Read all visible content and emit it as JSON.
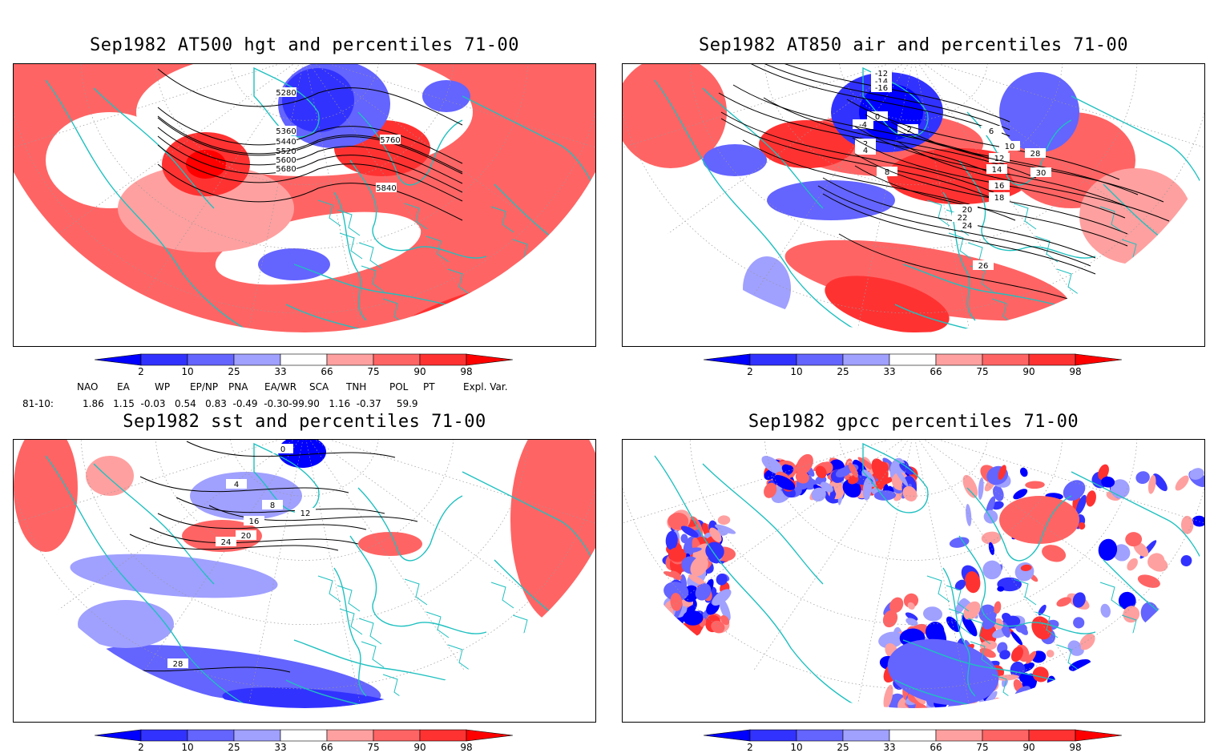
{
  "panels": [
    {
      "id": "hgt",
      "title": "Sep1982 AT500 hgt and percentiles 71-00",
      "contour_labels": [
        "5280",
        "5360",
        "5440",
        "5520",
        "5600",
        "5680",
        "5760",
        "5840"
      ]
    },
    {
      "id": "air",
      "title": "Sep1982 AT850 air and percentiles 71-00",
      "contour_labels": [
        "-12",
        "-14",
        "-16",
        "-2",
        "-4",
        "0",
        "2",
        "4",
        "6",
        "8",
        "10",
        "12",
        "14",
        "16",
        "18",
        "20",
        "22",
        "24",
        "26",
        "28",
        "30"
      ]
    },
    {
      "id": "sst",
      "title": "Sep1982 sst and percentiles 71-00",
      "contour_labels": [
        "0",
        "4",
        "8",
        "12",
        "16",
        "20",
        "24",
        "28"
      ]
    },
    {
      "id": "gpcc",
      "title": "Sep1982 gpcc percentiles 71-00",
      "contour_labels": []
    }
  ],
  "colorbar": {
    "labels": [
      "2",
      "10",
      "25",
      "33",
      "66",
      "75",
      "90",
      "98"
    ],
    "colors": [
      "#0000ff",
      "#3232ff",
      "#6464ff",
      "#a0a0ff",
      "#ffffff",
      "#ffa0a0",
      "#ff6464",
      "#ff3232",
      "#ff0000"
    ]
  },
  "indices": {
    "headers": [
      "NAO",
      "EA",
      "WP",
      "EP/NP",
      "PNA",
      "EA/WR",
      "SCA",
      "TNH",
      "POL",
      "PT",
      "Expl. Var."
    ],
    "row_label": "81-10:",
    "values": "1.86   1.15  -0.03   0.54   0.83  -0.49  -0.30-99.90   1.16  -0.37     59.9"
  },
  "colors": {
    "coast": "#20c0c0",
    "contour": "#000000",
    "grid": "#999999"
  }
}
